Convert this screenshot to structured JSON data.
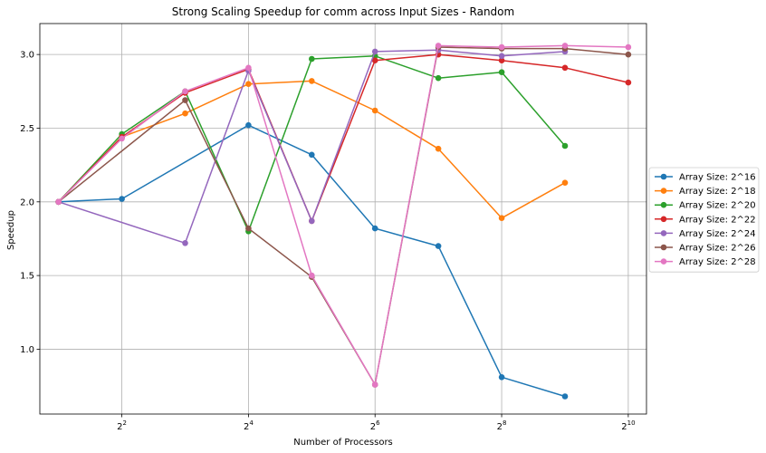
{
  "chart_data": {
    "type": "line",
    "title": "Strong Scaling Speedup for comm across Input Sizes - Random",
    "xlabel": "Number of Processors",
    "ylabel": "Speedup",
    "x_scale": "log2",
    "x": [
      2,
      4,
      8,
      16,
      32,
      64,
      128,
      256,
      512,
      1024
    ],
    "x_ticks": [
      4,
      16,
      64,
      256,
      1024
    ],
    "x_tick_labels": [
      {
        "base": "2",
        "exp": "2"
      },
      {
        "base": "2",
        "exp": "4"
      },
      {
        "base": "2",
        "exp": "6"
      },
      {
        "base": "2",
        "exp": "8"
      },
      {
        "base": "2",
        "exp": "10"
      }
    ],
    "xlim": [
      1.63,
      1250
    ],
    "y_ticks": [
      1.0,
      1.5,
      2.0,
      2.5,
      3.0
    ],
    "y_tick_labels": [
      "1.0",
      "1.5",
      "2.0",
      "2.5",
      "3.0"
    ],
    "ylim": [
      0.56,
      3.21
    ],
    "grid": true,
    "legend_position": "center-right-outside",
    "series": [
      {
        "name": "Array Size: 2^16",
        "color": "#1f77b4",
        "values": [
          2.0,
          2.02,
          null,
          2.52,
          2.32,
          1.82,
          1.7,
          0.81,
          0.68,
          null
        ]
      },
      {
        "name": "Array Size: 2^18",
        "color": "#ff7f0e",
        "values": [
          2.0,
          2.44,
          2.6,
          2.8,
          2.82,
          2.62,
          2.36,
          1.89,
          2.13,
          null
        ]
      },
      {
        "name": "Array Size: 2^20",
        "color": "#2ca02c",
        "values": [
          2.0,
          2.46,
          2.75,
          1.8,
          2.97,
          2.99,
          2.84,
          2.88,
          2.38,
          null
        ]
      },
      {
        "name": "Array Size: 2^22",
        "color": "#d62728",
        "values": [
          2.0,
          2.44,
          2.74,
          2.9,
          1.87,
          2.96,
          3.0,
          2.96,
          2.91,
          2.81
        ]
      },
      {
        "name": "Array Size: 2^24",
        "color": "#9467bd",
        "values": [
          2.0,
          null,
          1.72,
          2.89,
          1.87,
          3.02,
          3.03,
          2.99,
          3.02,
          null
        ]
      },
      {
        "name": "Array Size: 2^26",
        "color": "#8c564b",
        "values": [
          2.0,
          null,
          2.69,
          1.82,
          1.49,
          0.76,
          3.05,
          3.04,
          3.04,
          3.0
        ]
      },
      {
        "name": "Array Size: 2^28",
        "color": "#e377c2",
        "values": [
          2.0,
          2.43,
          2.75,
          2.91,
          1.5,
          0.76,
          3.06,
          3.05,
          3.06,
          3.05
        ]
      }
    ]
  }
}
